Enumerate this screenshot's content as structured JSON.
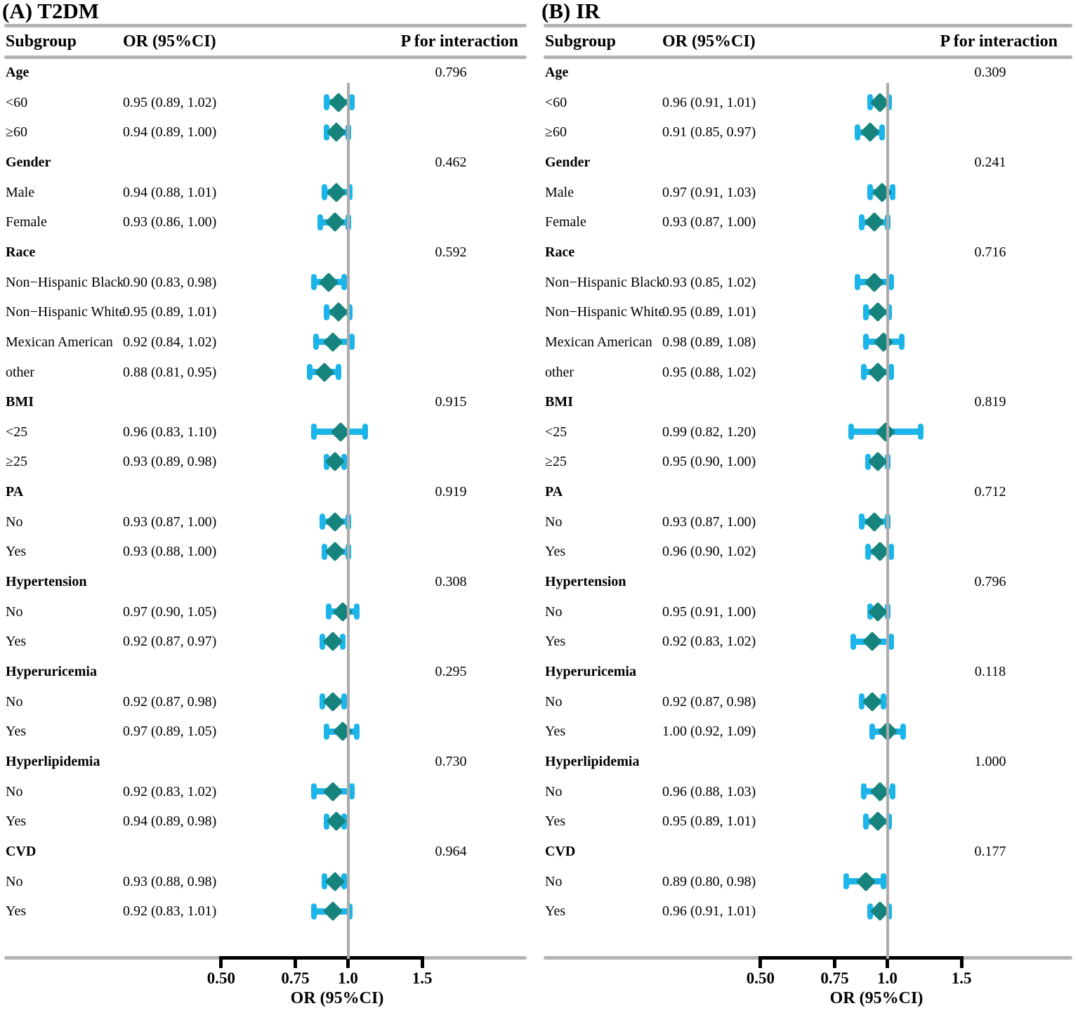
{
  "colors": {
    "error_bar": "#1CB5E9",
    "point_diamond": "#17837D",
    "table_rule": "#B3B3B3",
    "reference_line": "#ABABAB",
    "axis": "#000000",
    "text": "#000000"
  },
  "chart_data": [
    {
      "type": "scatter",
      "subtype": "forest-plot",
      "title": "(A) T2DM",
      "columns": {
        "subgroup": "Subgroup",
        "or": "OR (95%CI)",
        "p": "P for interaction"
      },
      "axis": {
        "scale": "log",
        "ticks": [
          0.5,
          0.75,
          1.0,
          1.5
        ],
        "tick_labels": [
          "0.50",
          "0.75",
          "1.0",
          "1.5"
        ],
        "label": "OR (95%CI)",
        "reference_line": 1.0
      },
      "rows": [
        {
          "type": "group",
          "label": "Age",
          "p": "0.796"
        },
        {
          "type": "item",
          "label": "<60",
          "or_text": "0.95 (0.89, 1.02)",
          "or": 0.95,
          "lo": 0.89,
          "hi": 1.02
        },
        {
          "type": "item",
          "label": "≥60",
          "or_text": "0.94 (0.89, 1.00)",
          "or": 0.94,
          "lo": 0.89,
          "hi": 1.0
        },
        {
          "type": "group",
          "label": "Gender",
          "p": "0.462"
        },
        {
          "type": "item",
          "label": "Male",
          "or_text": "0.94 (0.88, 1.01)",
          "or": 0.94,
          "lo": 0.88,
          "hi": 1.01
        },
        {
          "type": "item",
          "label": "Female",
          "or_text": "0.93 (0.86, 1.00)",
          "or": 0.93,
          "lo": 0.86,
          "hi": 1.0
        },
        {
          "type": "group",
          "label": "Race",
          "p": "0.592"
        },
        {
          "type": "item",
          "label": "Non−Hispanic Black",
          "or_text": "0.90 (0.83, 0.98)",
          "or": 0.9,
          "lo": 0.83,
          "hi": 0.98
        },
        {
          "type": "item",
          "label": "Non−Hispanic White",
          "or_text": "0.95 (0.89, 1.01)",
          "or": 0.95,
          "lo": 0.89,
          "hi": 1.01
        },
        {
          "type": "item",
          "label": "Mexican American",
          "or_text": "0.92 (0.84, 1.02)",
          "or": 0.92,
          "lo": 0.84,
          "hi": 1.02
        },
        {
          "type": "item",
          "label": "other",
          "or_text": "0.88 (0.81, 0.95)",
          "or": 0.88,
          "lo": 0.81,
          "hi": 0.95
        },
        {
          "type": "group",
          "label": "BMI",
          "p": "0.915"
        },
        {
          "type": "item",
          "label": "<25",
          "or_text": "0.96 (0.83, 1.10)",
          "or": 0.96,
          "lo": 0.83,
          "hi": 1.1
        },
        {
          "type": "item",
          "label": "≥25",
          "or_text": "0.93 (0.89, 0.98)",
          "or": 0.93,
          "lo": 0.89,
          "hi": 0.98
        },
        {
          "type": "group",
          "label": "PA",
          "p": "0.919"
        },
        {
          "type": "item",
          "label": "No",
          "or_text": "0.93 (0.87, 1.00)",
          "or": 0.93,
          "lo": 0.87,
          "hi": 1.0
        },
        {
          "type": "item",
          "label": "Yes",
          "or_text": "0.93 (0.88, 1.00)",
          "or": 0.93,
          "lo": 0.88,
          "hi": 1.0
        },
        {
          "type": "group",
          "label": "Hypertension",
          "p": "0.308"
        },
        {
          "type": "item",
          "label": "No",
          "or_text": "0.97 (0.90, 1.05)",
          "or": 0.97,
          "lo": 0.9,
          "hi": 1.05
        },
        {
          "type": "item",
          "label": "Yes",
          "or_text": "0.92 (0.87, 0.97)",
          "or": 0.92,
          "lo": 0.87,
          "hi": 0.97
        },
        {
          "type": "group",
          "label": "Hyperuricemia",
          "p": "0.295"
        },
        {
          "type": "item",
          "label": "No",
          "or_text": "0.92 (0.87, 0.98)",
          "or": 0.92,
          "lo": 0.87,
          "hi": 0.98
        },
        {
          "type": "item",
          "label": "Yes",
          "or_text": "0.97 (0.89, 1.05)",
          "or": 0.97,
          "lo": 0.89,
          "hi": 1.05
        },
        {
          "type": "group",
          "label": "Hyperlipidemia",
          "p": "0.730"
        },
        {
          "type": "item",
          "label": "No",
          "or_text": "0.92 (0.83, 1.02)",
          "or": 0.92,
          "lo": 0.83,
          "hi": 1.02
        },
        {
          "type": "item",
          "label": "Yes",
          "or_text": "0.94 (0.89, 0.98)",
          "or": 0.94,
          "lo": 0.89,
          "hi": 0.98
        },
        {
          "type": "group",
          "label": "CVD",
          "p": "0.964"
        },
        {
          "type": "item",
          "label": "No",
          "or_text": "0.93 (0.88, 0.98)",
          "or": 0.93,
          "lo": 0.88,
          "hi": 0.98
        },
        {
          "type": "item",
          "label": "Yes",
          "or_text": "0.92 (0.83, 1.01)",
          "or": 0.92,
          "lo": 0.83,
          "hi": 1.01
        }
      ]
    },
    {
      "type": "scatter",
      "subtype": "forest-plot",
      "title": "(B) IR",
      "columns": {
        "subgroup": "Subgroup",
        "or": "OR (95%CI)",
        "p": "P for interaction"
      },
      "axis": {
        "scale": "log",
        "ticks": [
          0.5,
          0.75,
          1.0,
          1.5
        ],
        "tick_labels": [
          "0.50",
          "0.75",
          "1.0",
          "1.5"
        ],
        "label": "OR (95%CI)",
        "reference_line": 1.0
      },
      "rows": [
        {
          "type": "group",
          "label": "Age",
          "p": "0.309"
        },
        {
          "type": "item",
          "label": "<60",
          "or_text": "0.96 (0.91, 1.01)",
          "or": 0.96,
          "lo": 0.91,
          "hi": 1.01
        },
        {
          "type": "item",
          "label": "≥60",
          "or_text": "0.91 (0.85, 0.97)",
          "or": 0.91,
          "lo": 0.85,
          "hi": 0.97
        },
        {
          "type": "group",
          "label": "Gender",
          "p": "0.241"
        },
        {
          "type": "item",
          "label": "Male",
          "or_text": "0.97 (0.91, 1.03)",
          "or": 0.97,
          "lo": 0.91,
          "hi": 1.03
        },
        {
          "type": "item",
          "label": "Female",
          "or_text": "0.93 (0.87, 1.00)",
          "or": 0.93,
          "lo": 0.87,
          "hi": 1.0
        },
        {
          "type": "group",
          "label": "Race",
          "p": "0.716"
        },
        {
          "type": "item",
          "label": "Non−Hispanic Black",
          "or_text": "0.93 (0.85, 1.02)",
          "or": 0.93,
          "lo": 0.85,
          "hi": 1.02
        },
        {
          "type": "item",
          "label": "Non−Hispanic White",
          "or_text": "0.95 (0.89, 1.01)",
          "or": 0.95,
          "lo": 0.89,
          "hi": 1.01
        },
        {
          "type": "item",
          "label": "Mexican American",
          "or_text": "0.98 (0.89, 1.08)",
          "or": 0.98,
          "lo": 0.89,
          "hi": 1.08
        },
        {
          "type": "item",
          "label": "other",
          "or_text": "0.95 (0.88, 1.02)",
          "or": 0.95,
          "lo": 0.88,
          "hi": 1.02
        },
        {
          "type": "group",
          "label": "BMI",
          "p": "0.819"
        },
        {
          "type": "item",
          "label": "<25",
          "or_text": "0.99 (0.82, 1.20)",
          "or": 0.99,
          "lo": 0.82,
          "hi": 1.2
        },
        {
          "type": "item",
          "label": "≥25",
          "or_text": "0.95 (0.90, 1.00)",
          "or": 0.95,
          "lo": 0.9,
          "hi": 1.0
        },
        {
          "type": "group",
          "label": "PA",
          "p": "0.712"
        },
        {
          "type": "item",
          "label": "No",
          "or_text": "0.93 (0.87, 1.00)",
          "or": 0.93,
          "lo": 0.87,
          "hi": 1.0
        },
        {
          "type": "item",
          "label": "Yes",
          "or_text": "0.96 (0.90, 1.02)",
          "or": 0.96,
          "lo": 0.9,
          "hi": 1.02
        },
        {
          "type": "group",
          "label": "Hypertension",
          "p": "0.796"
        },
        {
          "type": "item",
          "label": "No",
          "or_text": "0.95 (0.91, 1.00)",
          "or": 0.95,
          "lo": 0.91,
          "hi": 1.0
        },
        {
          "type": "item",
          "label": "Yes",
          "or_text": "0.92 (0.83, 1.02)",
          "or": 0.92,
          "lo": 0.83,
          "hi": 1.02
        },
        {
          "type": "group",
          "label": "Hyperuricemia",
          "p": "0.118"
        },
        {
          "type": "item",
          "label": "No",
          "or_text": "0.92 (0.87, 0.98)",
          "or": 0.92,
          "lo": 0.87,
          "hi": 0.98
        },
        {
          "type": "item",
          "label": "Yes",
          "or_text": "1.00 (0.92, 1.09)",
          "or": 1.0,
          "lo": 0.92,
          "hi": 1.09
        },
        {
          "type": "group",
          "label": "Hyperlipidemia",
          "p": "1.000"
        },
        {
          "type": "item",
          "label": "No",
          "or_text": "0.96 (0.88, 1.03)",
          "or": 0.96,
          "lo": 0.88,
          "hi": 1.03
        },
        {
          "type": "item",
          "label": "Yes",
          "or_text": "0.95 (0.89, 1.01)",
          "or": 0.95,
          "lo": 0.89,
          "hi": 1.01
        },
        {
          "type": "group",
          "label": "CVD",
          "p": "0.177"
        },
        {
          "type": "item",
          "label": "No",
          "or_text": "0.89 (0.80, 0.98)",
          "or": 0.89,
          "lo": 0.8,
          "hi": 0.98
        },
        {
          "type": "item",
          "label": "Yes",
          "or_text": "0.96 (0.91, 1.01)",
          "or": 0.96,
          "lo": 0.91,
          "hi": 1.01
        }
      ]
    }
  ]
}
